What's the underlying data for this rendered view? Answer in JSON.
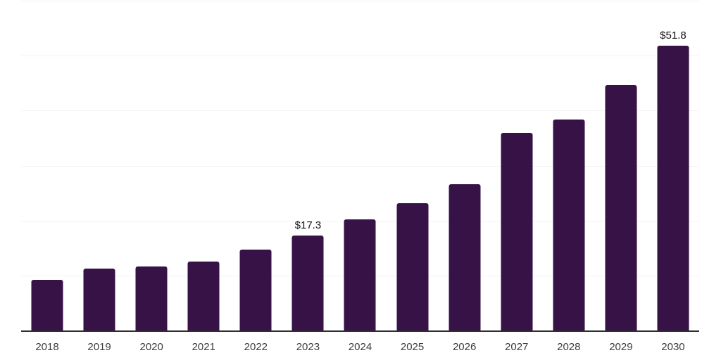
{
  "chart_data": {
    "type": "bar",
    "categories": [
      "2018",
      "2019",
      "2020",
      "2021",
      "2022",
      "2023",
      "2024",
      "2025",
      "2026",
      "2027",
      "2028",
      "2029",
      "2030"
    ],
    "values": [
      9.2,
      11.2,
      11.7,
      12.6,
      14.7,
      17.3,
      20.2,
      23.1,
      26.6,
      35.9,
      38.4,
      44.7,
      51.8
    ],
    "data_labels": {
      "2023": "$17.3",
      "2030": "$51.8"
    },
    "ylim": [
      0,
      60
    ],
    "gridline_step": 10,
    "grid": true,
    "y_axis_tick_labels_visible": false,
    "legend": "none",
    "bar_color": "#361247",
    "axis_line_color": "#2e2e2e",
    "gridline_color": "#f2f2f2",
    "xlabel_color": "#3c3c3c",
    "data_label_color": "#121212"
  }
}
